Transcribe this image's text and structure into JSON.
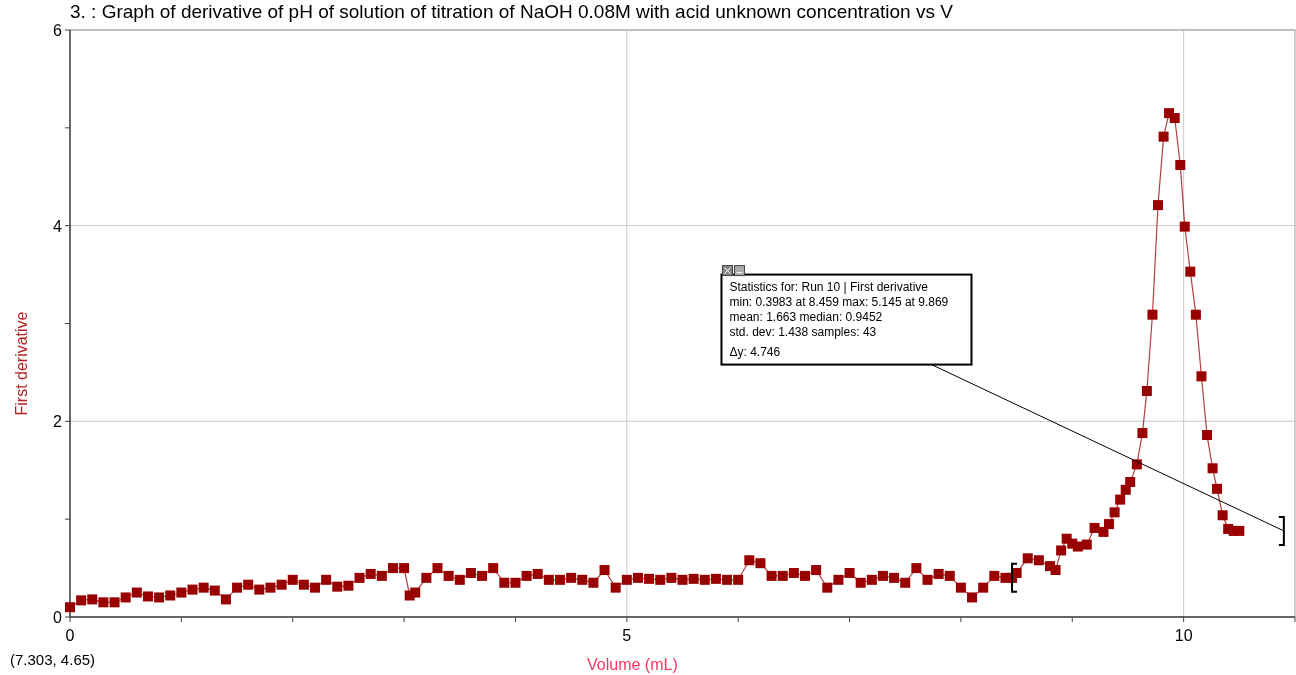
{
  "chart_data": {
    "type": "line",
    "title": "3. : Graph of derivative of pH of solution of titration of NaOH 0.08M with acid unknown concentration vs V",
    "xlabel": "Volume (mL)",
    "ylabel": "First derivative",
    "xlim": [
      0,
      11
    ],
    "ylim": [
      0,
      6
    ],
    "xticks": [
      0,
      {
        "value": 1,
        "label": null
      },
      {
        "value": 2,
        "label": null
      },
      {
        "value": 3,
        "label": null
      },
      {
        "value": 4,
        "label": null
      },
      5,
      {
        "value": 6,
        "label": null
      },
      {
        "value": 7,
        "label": null
      },
      {
        "value": 8,
        "label": null
      },
      {
        "value": 9,
        "label": null
      },
      10,
      {
        "value": 11,
        "label": null
      }
    ],
    "yticks": [
      0,
      {
        "value": 1,
        "label": null
      },
      2,
      {
        "value": 3,
        "label": null
      },
      4,
      {
        "value": 5,
        "label": null
      },
      6
    ],
    "grid": true,
    "marker": "square",
    "line_style": "solid",
    "annotations": [
      "Statistics for: Run 10 | First derivative",
      "min: 0.3983 at 8.459 max: 5.145 at 9.869",
      "mean: 1.663 median: 0.9452",
      "std. dev: 1.438 samples: 43",
      "Δy: 4.746",
      "(7.303, 4.65)"
    ],
    "series": [
      {
        "color": "#990000",
        "x": [
          0,
          0.1,
          0.2,
          0.3,
          0.4,
          0.5,
          0.6,
          0.7,
          0.8,
          0.9,
          1.0,
          1.1,
          1.2,
          1.3,
          1.4,
          1.5,
          1.6,
          1.7,
          1.8,
          1.9,
          2.0,
          2.1,
          2.2,
          2.3,
          2.4,
          2.5,
          2.6,
          2.7,
          2.8,
          2.9,
          3.0,
          3.05,
          3.1,
          3.2,
          3.3,
          3.4,
          3.5,
          3.6,
          3.7,
          3.8,
          3.9,
          4.0,
          4.1,
          4.2,
          4.3,
          4.4,
          4.5,
          4.6,
          4.7,
          4.8,
          4.9,
          5.0,
          5.1,
          5.2,
          5.3,
          5.4,
          5.5,
          5.6,
          5.7,
          5.8,
          5.9,
          6.0,
          6.1,
          6.2,
          6.3,
          6.4,
          6.5,
          6.6,
          6.7,
          6.8,
          6.9,
          7.0,
          7.1,
          7.2,
          7.3,
          7.4,
          7.5,
          7.6,
          7.7,
          7.8,
          7.9,
          8.0,
          8.1,
          8.2,
          8.3,
          8.4,
          8.459,
          8.5,
          8.6,
          8.7,
          8.8,
          8.85,
          8.9,
          8.95,
          9.0,
          9.05,
          9.13,
          9.2,
          9.28,
          9.33,
          9.38,
          9.43,
          9.48,
          9.52,
          9.58,
          9.63,
          9.67,
          9.72,
          9.77,
          9.82,
          9.869,
          9.92,
          9.97,
          10.01,
          10.06,
          10.11,
          10.16,
          10.21,
          10.26,
          10.3,
          10.35,
          10.4,
          10.45,
          10.5
        ],
        "values": [
          0.1,
          0.17,
          0.18,
          0.15,
          0.15,
          0.2,
          0.25,
          0.21,
          0.2,
          0.22,
          0.25,
          0.28,
          0.3,
          0.27,
          0.18,
          0.3,
          0.33,
          0.28,
          0.3,
          0.33,
          0.38,
          0.33,
          0.3,
          0.38,
          0.31,
          0.32,
          0.4,
          0.44,
          0.42,
          0.5,
          0.5,
          0.22,
          0.25,
          0.4,
          0.5,
          0.42,
          0.38,
          0.45,
          0.42,
          0.5,
          0.35,
          0.35,
          0.42,
          0.44,
          0.38,
          0.38,
          0.4,
          0.38,
          0.35,
          0.48,
          0.3,
          0.38,
          0.4,
          0.39,
          0.38,
          0.4,
          0.38,
          0.39,
          0.38,
          0.39,
          0.38,
          0.38,
          0.58,
          0.55,
          0.42,
          0.42,
          0.45,
          0.42,
          0.48,
          0.3,
          0.38,
          0.45,
          0.35,
          0.38,
          0.42,
          0.4,
          0.35,
          0.5,
          0.38,
          0.44,
          0.42,
          0.3,
          0.2,
          0.3,
          0.42,
          0.4,
          0.4,
          0.45,
          0.6,
          0.58,
          0.52,
          0.48,
          0.68,
          0.8,
          0.75,
          0.72,
          0.74,
          0.91,
          0.87,
          0.95,
          1.07,
          1.2,
          1.3,
          1.38,
          1.56,
          1.88,
          2.31,
          3.09,
          4.21,
          4.91,
          5.15,
          5.1,
          4.62,
          3.99,
          3.53,
          3.09,
          2.46,
          1.86,
          1.52,
          1.31,
          1.04,
          0.9,
          0.88,
          0.88
        ]
      }
    ]
  }
}
